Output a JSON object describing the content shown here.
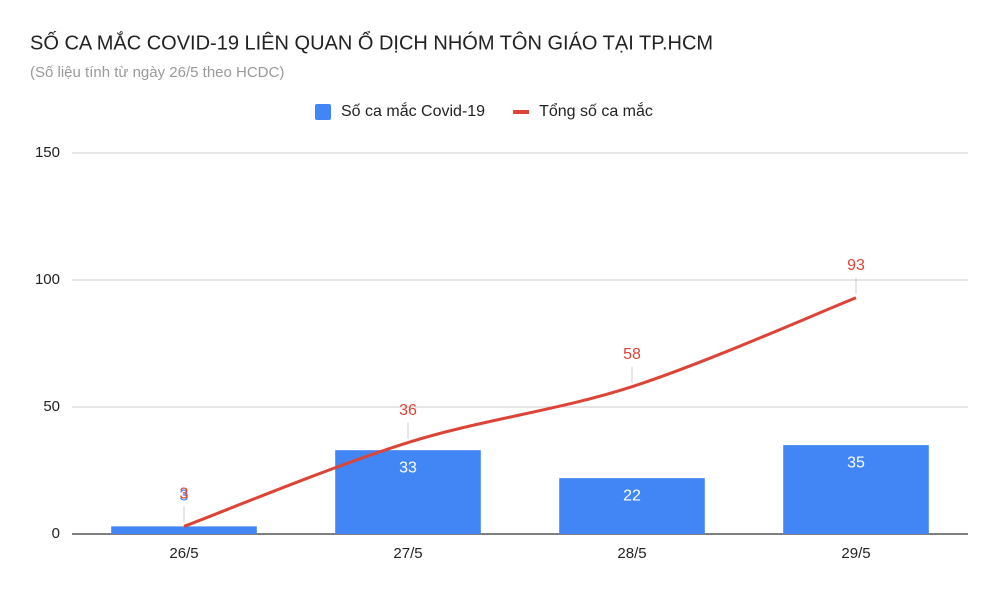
{
  "chart_data": {
    "type": "combo",
    "title": "SỐ CA MẮC COVID-19 LIÊN QUAN Ổ DỊCH NHÓM TÔN GIÁO TẠI TP.HCM",
    "subtitle": "(Số liệu tính từ ngày 26/5 theo HCDC)",
    "categories": [
      "26/5",
      "27/5",
      "28/5",
      "29/5"
    ],
    "series": [
      {
        "name": "Số ca mắc Covid-19",
        "type": "bar",
        "color": "#4285f4",
        "values": [
          3,
          33,
          22,
          35
        ]
      },
      {
        "name": "Tổng số ca mắc",
        "type": "line",
        "color": "#db4437",
        "values": [
          3,
          36,
          58,
          93
        ]
      }
    ],
    "ylim": [
      0,
      150
    ],
    "yticks": [
      0,
      50,
      100,
      150
    ],
    "grid": true,
    "legend": "top"
  }
}
